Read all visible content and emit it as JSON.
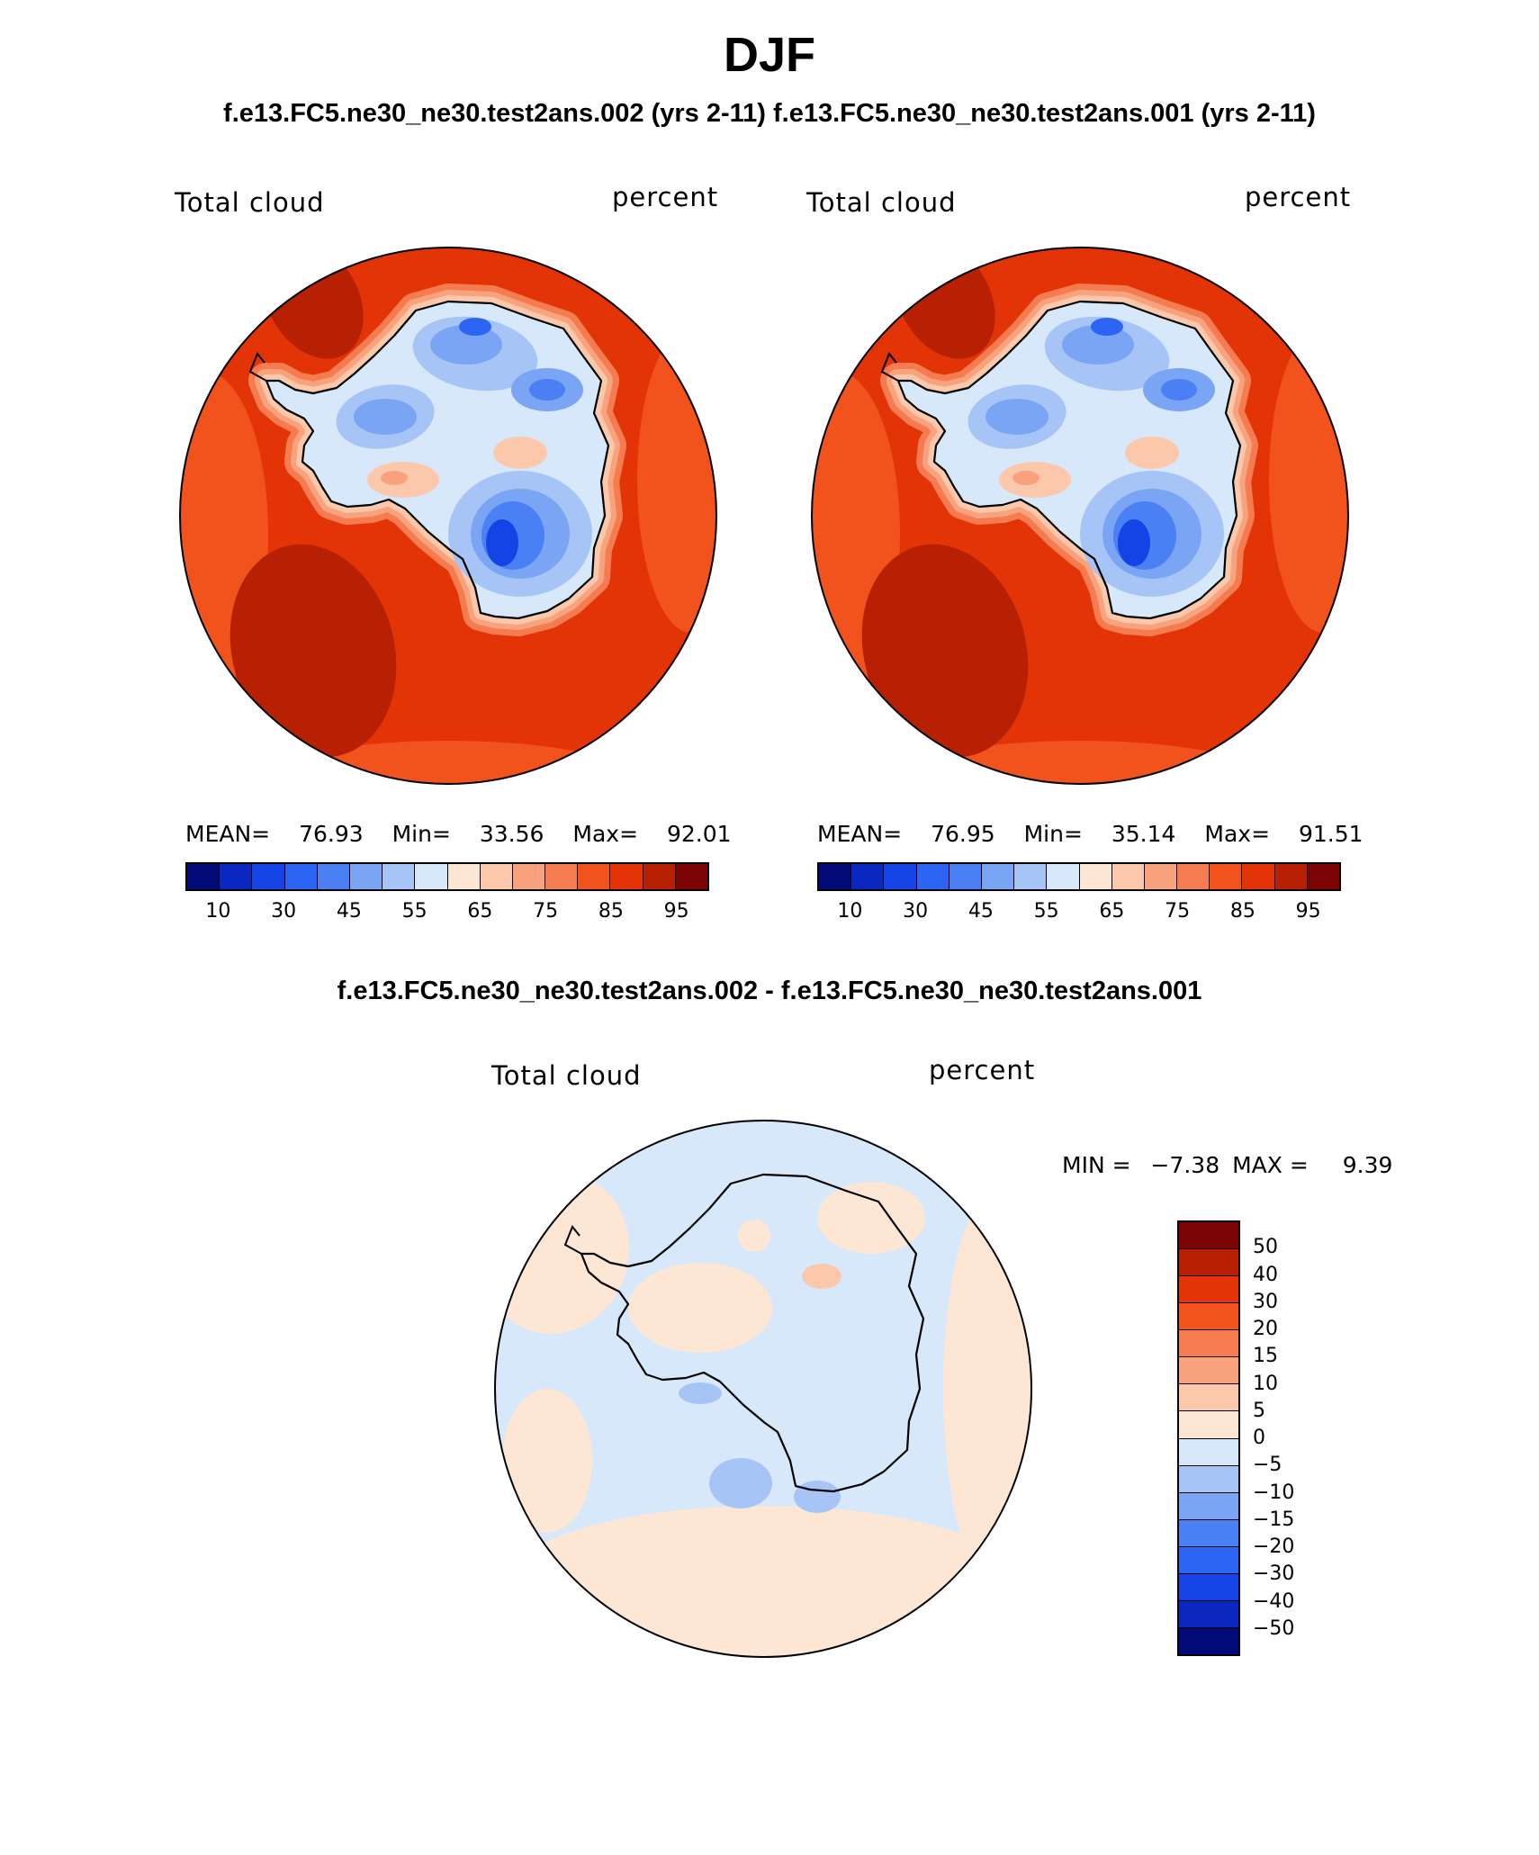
{
  "figure": {
    "title": "DJF",
    "subtitle_top": "f.e13.FC5.ne30_ne30.test2ans.002 (yrs 2-11) f.e13.FC5.ne30_ne30.test2ans.001 (yrs 2-11)",
    "subtitle_diff": "f.e13.FC5.ne30_ne30.test2ans.002 - f.e13.FC5.ne30_ne30.test2ans.001"
  },
  "panels": [
    {
      "variable": "Total cloud",
      "units": "percent",
      "stats": {
        "mean_label": "MEAN=",
        "mean": "76.93",
        "min_label": "Min=",
        "min": "33.56",
        "max_label": "Max=",
        "max": "92.01"
      }
    },
    {
      "variable": "Total cloud",
      "units": "percent",
      "stats": {
        "mean_label": "MEAN=",
        "mean": "76.95",
        "min_label": "Min=",
        "min": "35.14",
        "max_label": "Max=",
        "max": "91.51"
      }
    }
  ],
  "diff_panel": {
    "variable": "Total cloud",
    "units": "percent",
    "stats": {
      "min_label": "MIN =",
      "min": "−7.38",
      "max_label": "MAX =",
      "max": "9.39"
    }
  },
  "colorbar_abs": {
    "colors": [
      "#020a78",
      "#0a28c0",
      "#1444e6",
      "#2c64f4",
      "#4a80f4",
      "#7aa4f4",
      "#a6c4f6",
      "#d6e8fa",
      "#fde7d4",
      "#fcc8ac",
      "#f9a37e",
      "#f57c50",
      "#f2531c",
      "#e23406",
      "#b82004",
      "#7c0404"
    ],
    "tick_labels": [
      "10",
      "30",
      "45",
      "55",
      "65",
      "75",
      "85",
      "95"
    ]
  },
  "colorbar_diff": {
    "colors_top_to_bottom": [
      "#7c0404",
      "#b82004",
      "#e23406",
      "#f2531c",
      "#f57c50",
      "#f9a37e",
      "#fcc8ac",
      "#fde7d4",
      "#d6e8fa",
      "#a6c4f6",
      "#7aa4f4",
      "#4a80f4",
      "#2c64f4",
      "#1444e6",
      "#0a28c0",
      "#020a78"
    ],
    "tick_labels": [
      "50",
      "40",
      "30",
      "20",
      "15",
      "10",
      "5",
      "0",
      "−5",
      "−10",
      "−15",
      "−20",
      "−30",
      "−40",
      "−50"
    ]
  },
  "map_colors": {
    "ocean_main": "#e23406",
    "ocean_outer": "#f2531c",
    "ocean_dark": "#b82004",
    "ring1": "#f57c50",
    "ring2": "#f9a37e",
    "ring3": "#fcc8ac",
    "land_light": "#d6e8fa",
    "land_mid": "#a6c4f6",
    "land_blue": "#7aa4f4",
    "land_strong": "#4a80f4",
    "land_deep": "#2c64f4",
    "land_core": "#1444e6",
    "pale_orange": "#fde7d4",
    "pale_blue": "#d6e8fa",
    "diff_blue": "#a6c4f6",
    "diff_orange": "#fcc8ac",
    "coast": "#000000"
  }
}
